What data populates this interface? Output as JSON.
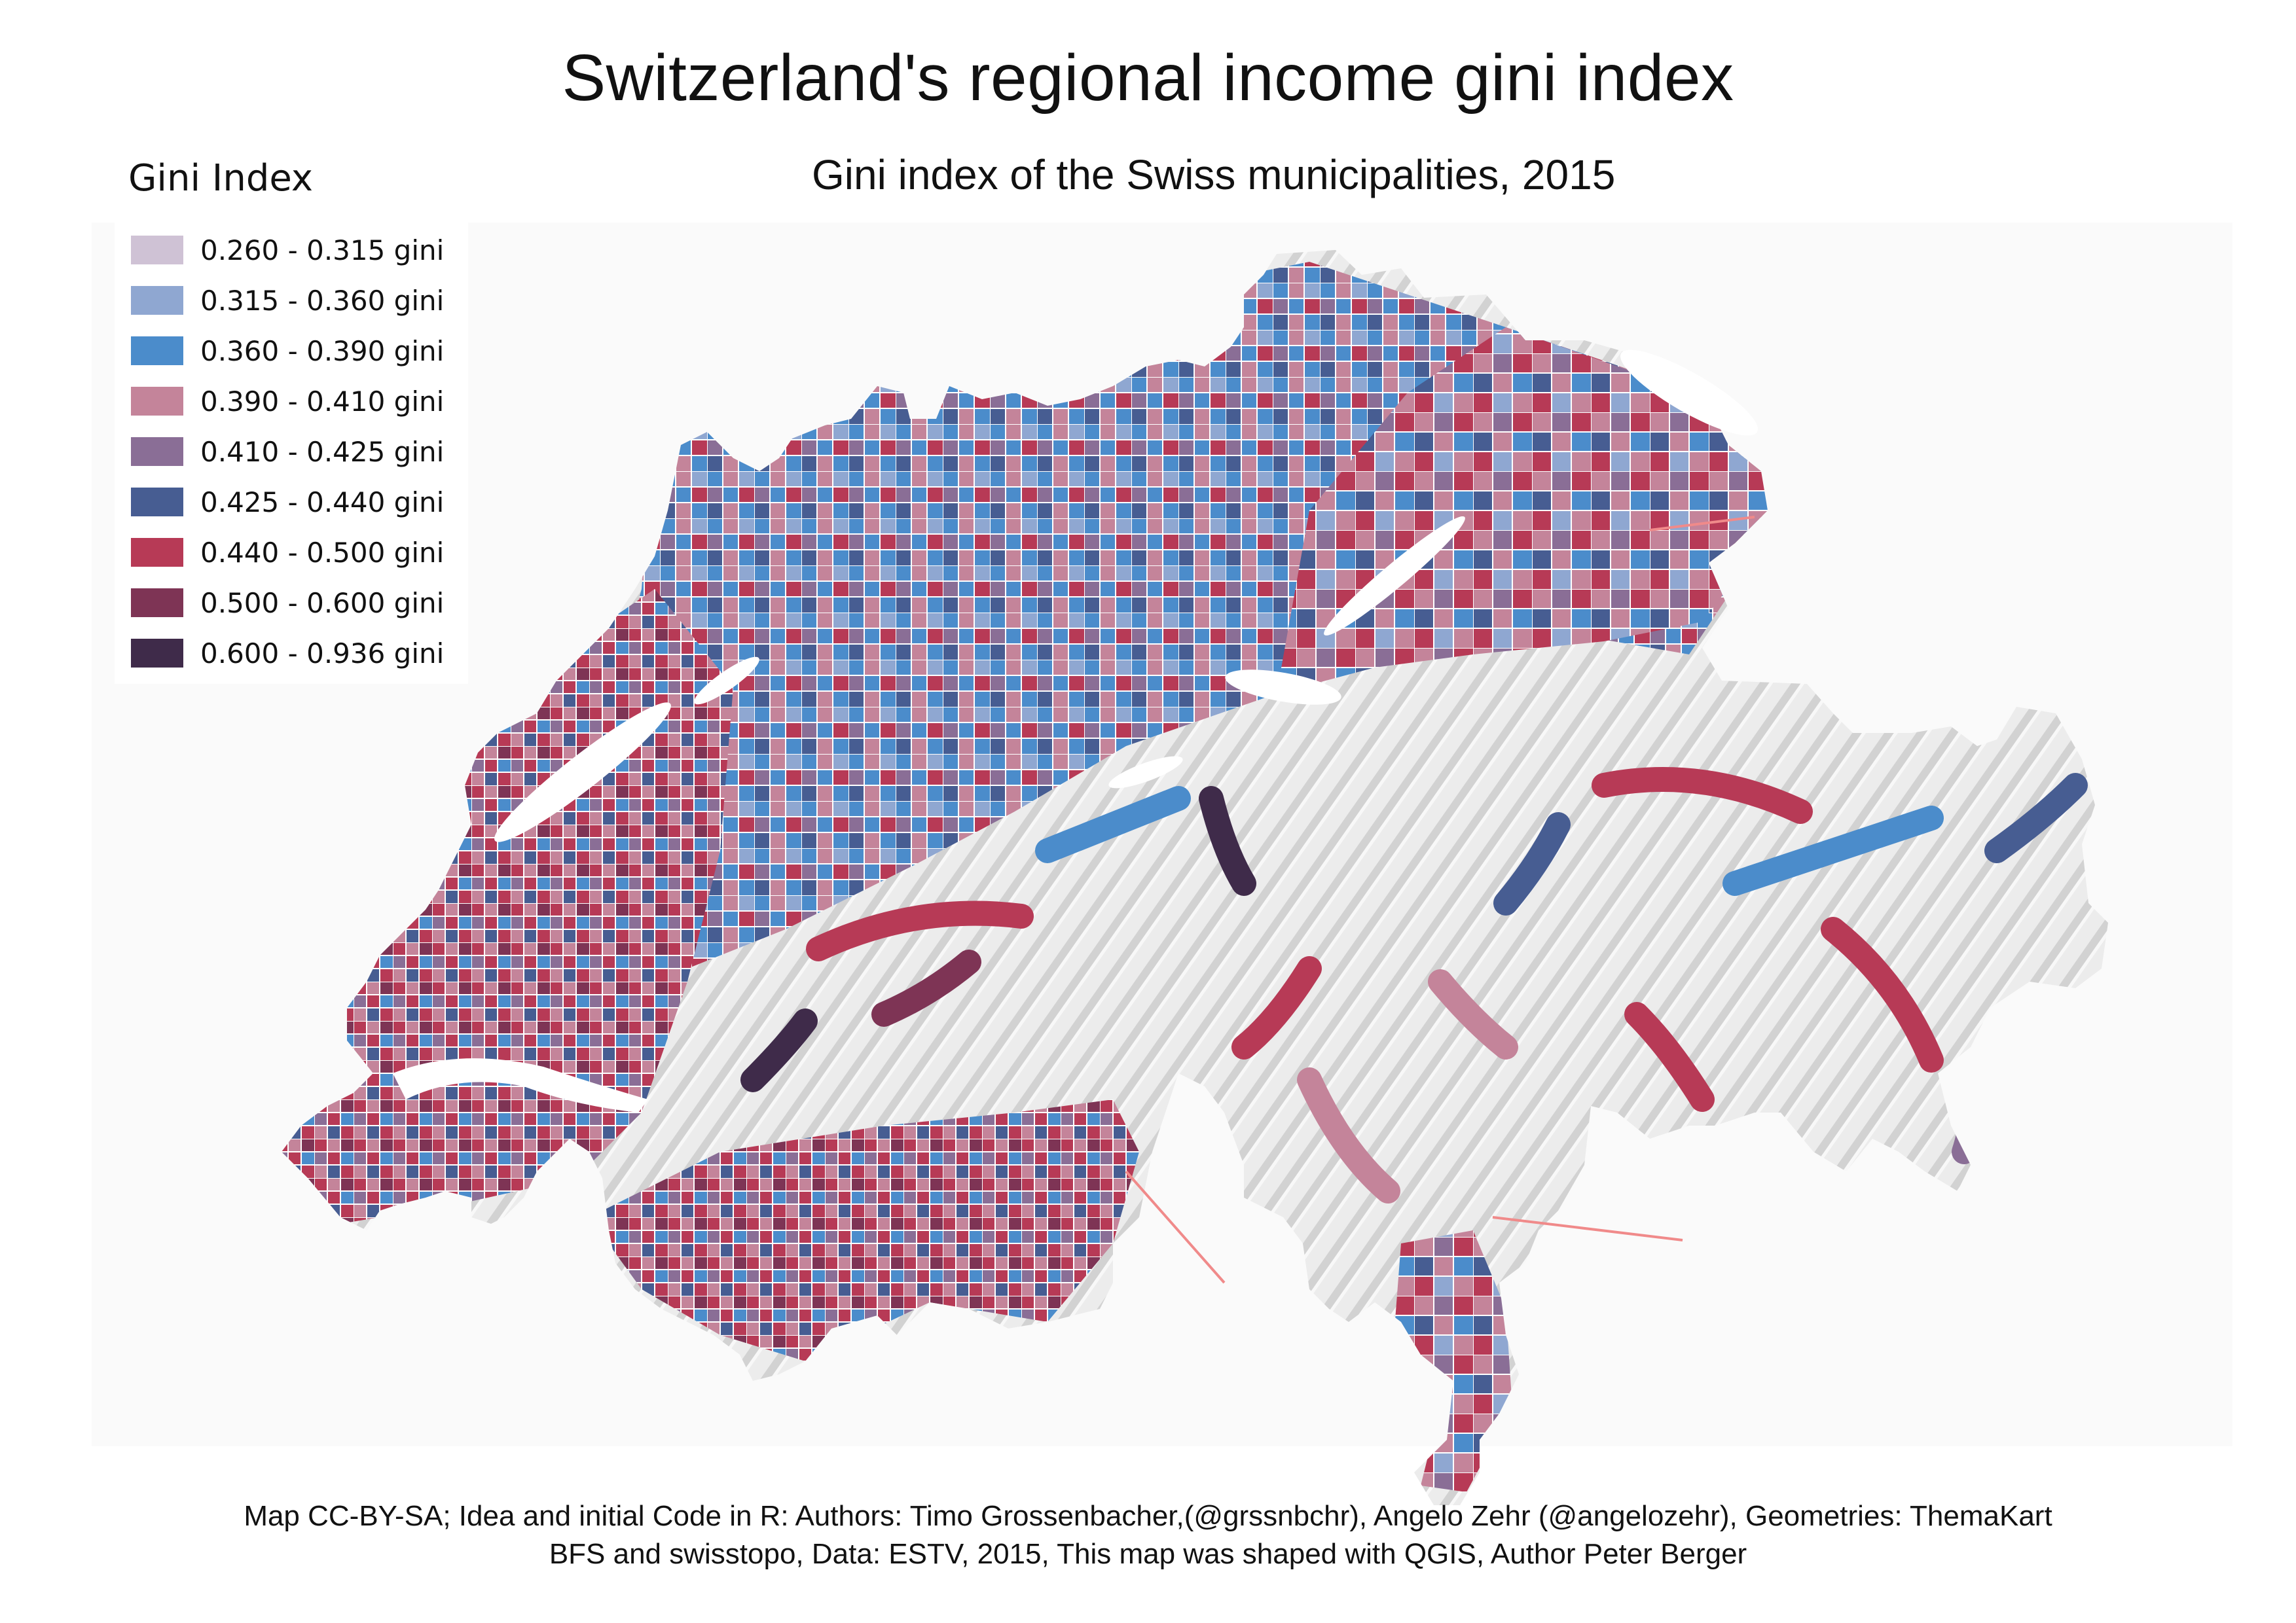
{
  "title": "Switzerland's regional income gini index",
  "subtitle": "Gini index of the Swiss municipalities, 2015",
  "legend": {
    "title": "Gini Index",
    "items": [
      {
        "label": "0.260 - 0.315 gini",
        "color": "#cfc2d5"
      },
      {
        "label": "0.315 - 0.360 gini",
        "color": "#8fa7d1"
      },
      {
        "label": "0.360 - 0.390 gini",
        "color": "#4b8ccb"
      },
      {
        "label": "0.390 - 0.410 gini",
        "color": "#c4849a"
      },
      {
        "label": "0.410 - 0.425 gini",
        "color": "#8a6e96"
      },
      {
        "label": "0.425 - 0.440 gini",
        "color": "#475d92"
      },
      {
        "label": "0.440 - 0.500 gini",
        "color": "#b73a56"
      },
      {
        "label": "0.500 - 0.600 gini",
        "color": "#7e3455"
      },
      {
        "label": "0.600 - 0.936 gini",
        "color": "#3f2b4a"
      }
    ]
  },
  "credits": {
    "line1": "Map CC-BY-SA; Idea and initial Code in R: Authors: Timo Grossenbacher,(@grssnbchr), Angelo Zehr (@angelozehr), Geometries: ThemaKart",
    "line2": "BFS and swisstopo, Data: ESTV, 2015, This map was shaped with QGIS, Author Peter Berger"
  },
  "colors": {
    "alps": "#ececec",
    "lakes": "#ffffff",
    "border_lines": "#ffffff",
    "callouts": "#f08a8a",
    "map_background": "#fafafa"
  }
}
